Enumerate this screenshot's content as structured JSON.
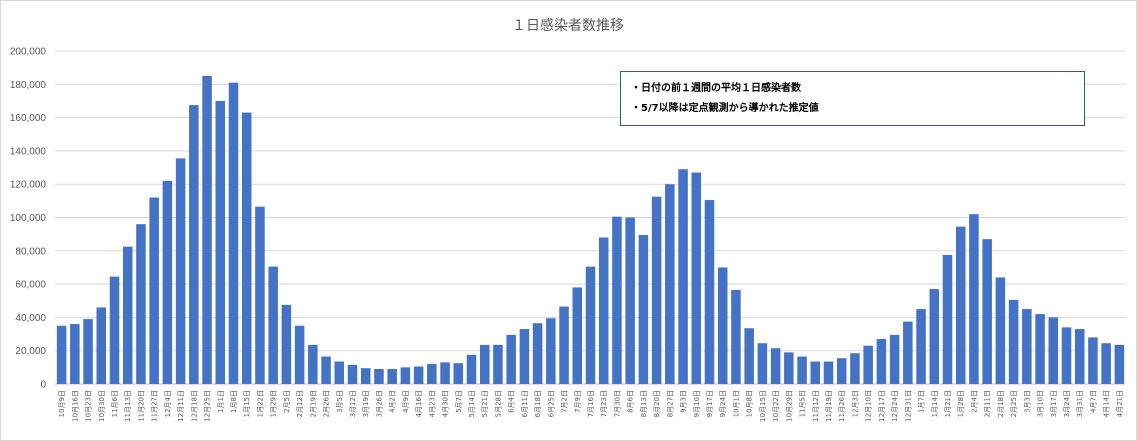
{
  "chart_data": {
    "type": "bar",
    "title": "１日感染者数推移",
    "xlabel": "",
    "ylabel": "",
    "ylim": [
      0,
      200000
    ],
    "yticks": [
      0,
      20000,
      40000,
      60000,
      80000,
      100000,
      120000,
      140000,
      160000,
      180000,
      200000
    ],
    "ytick_labels": [
      "0",
      "20,000",
      "40,000",
      "60,000",
      "80,000",
      "100,000",
      "120,000",
      "140,000",
      "160,000",
      "180,000",
      "200,000"
    ],
    "grid": true,
    "bar_color": "#4472c4",
    "annotations": [
      "・日付の前１週間の平均１日感染者数",
      "・5/7以降は定点観測から導かれた推定値"
    ],
    "categories": [
      "10月9日",
      "10月16日",
      "10月23日",
      "10月30日",
      "11月6日",
      "11月13日",
      "11月20日",
      "11月27日",
      "12月4日",
      "12月11日",
      "12月18日",
      "12月25日",
      "1月1日",
      "1月8日",
      "1月15日",
      "1月22日",
      "1月29日",
      "2月5日",
      "2月12日",
      "2月19日",
      "2月26日",
      "3月5日",
      "3月12日",
      "3月19日",
      "3月26日",
      "4月2日",
      "4月9日",
      "4月16日",
      "4月23日",
      "4月30日",
      "5月7日",
      "5月14日",
      "5月21日",
      "5月28日",
      "6月4日",
      "6月11日",
      "6月18日",
      "6月25日",
      "7月2日",
      "7月9日",
      "7月16日",
      "7月23日",
      "7月30日",
      "8月6日",
      "8月13日",
      "8月20日",
      "8月27日",
      "9月3日",
      "9月10日",
      "9月17日",
      "9月24日",
      "10月1日",
      "10月8日",
      "10月15日",
      "10月22日",
      "10月29日",
      "11月5日",
      "11月12日",
      "11月19日",
      "11月26日",
      "12月3日",
      "12月10日",
      "12月17日",
      "12月24日",
      "12月31日",
      "1月7日",
      "1月14日",
      "1月21日",
      "1月28日",
      "2月4日",
      "2月11日",
      "2月18日",
      "2月25日",
      "3月3日",
      "3月10日",
      "3月17日",
      "3月24日",
      "3月31日",
      "4月7日",
      "4月14日",
      "4月21日"
    ],
    "values": [
      35000,
      36000,
      39000,
      46000,
      64500,
      82500,
      96000,
      112000,
      122000,
      135500,
      167500,
      185000,
      170000,
      181000,
      163000,
      106500,
      70500,
      47500,
      35000,
      23500,
      16500,
      13500,
      11500,
      9500,
      9000,
      9000,
      10000,
      10500,
      12000,
      13000,
      12500,
      17500,
      23500,
      23500,
      29500,
      33000,
      36500,
      39500,
      46500,
      58000,
      70500,
      88000,
      100500,
      100000,
      89500,
      112500,
      120000,
      129000,
      127000,
      110500,
      70000,
      56500,
      33500,
      24500,
      21500,
      19000,
      16500,
      13500,
      13500,
      15500,
      18500,
      23000,
      27000,
      29500,
      37500,
      45000,
      57000,
      77500,
      94500,
      102000,
      87000,
      64000,
      50500,
      45000,
      42000,
      40000,
      34000,
      33000,
      28000,
      24500,
      23500
    ]
  }
}
